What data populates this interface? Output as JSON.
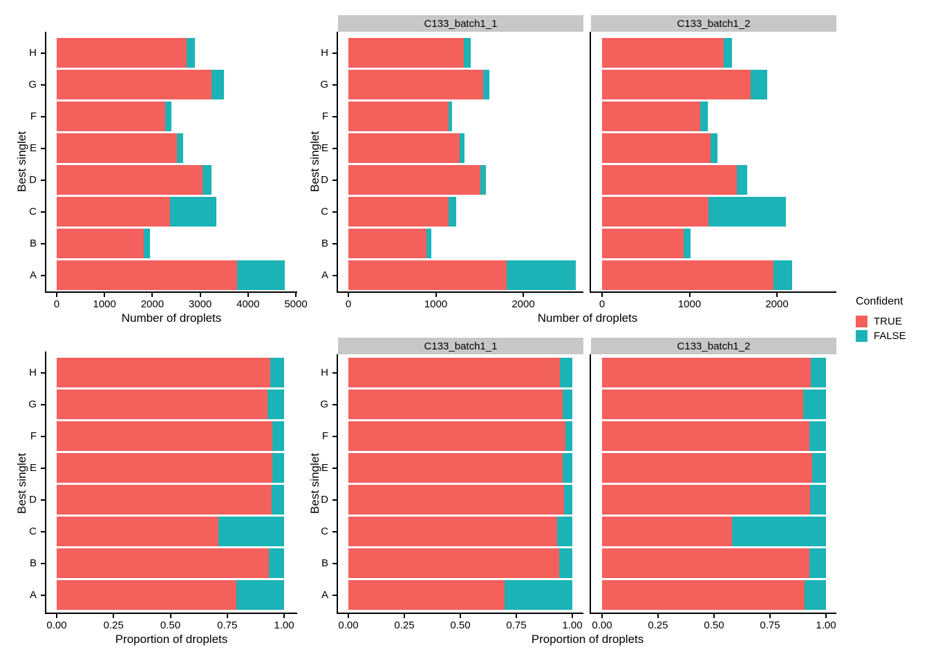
{
  "figure": {
    "background": "#ffffff"
  },
  "colors": {
    "true_fill": "#f4605c",
    "false_fill": "#1bb3b6",
    "strip_bg": "#c7c7c7",
    "axis": "#000000"
  },
  "legend": {
    "title": "Confident",
    "items": [
      {
        "label": "TRUE",
        "color": "#f4605c"
      },
      {
        "label": "FALSE",
        "color": "#1bb3b6"
      }
    ]
  },
  "chart_data": [
    {
      "id": "droplet_counts_overall",
      "type": "bar",
      "orientation": "horizontal",
      "stacked": true,
      "grid": false,
      "xlabel": "Number of droplets",
      "ylabel": "Best singlet",
      "categories": [
        "H",
        "G",
        "F",
        "E",
        "D",
        "C",
        "B",
        "A"
      ],
      "series": [
        {
          "name": "TRUE",
          "values": [
            2710,
            3240,
            2270,
            2510,
            3050,
            2370,
            1825,
            3770
          ]
        },
        {
          "name": "FALSE",
          "values": [
            180,
            260,
            125,
            135,
            180,
            965,
            130,
            1000
          ]
        }
      ],
      "xlim": [
        0,
        5000
      ],
      "xticks": [
        0,
        1000,
        2000,
        3000,
        4000,
        5000
      ],
      "xtick_labels": [
        "0",
        "1000",
        "2000",
        "3000",
        "4000",
        "5000"
      ]
    },
    {
      "id": "droplet_counts_by_sample",
      "type": "bar",
      "orientation": "horizontal",
      "stacked": true,
      "grid": false,
      "xlabel": "Number of droplets",
      "ylabel": "Best singlet",
      "categories": [
        "H",
        "G",
        "F",
        "E",
        "D",
        "C",
        "B",
        "A"
      ],
      "facets": [
        {
          "label": "C133_batch1_1",
          "series": [
            {
              "name": "TRUE",
              "values": [
                1320,
                1540,
                1150,
                1270,
                1510,
                1150,
                890,
                1810
              ]
            },
            {
              "name": "FALSE",
              "values": [
                80,
                70,
                35,
                55,
                60,
                85,
                55,
                790
              ]
            }
          ]
        },
        {
          "label": "C133_batch1_2",
          "series": [
            {
              "name": "TRUE",
              "values": [
                1390,
                1700,
                1120,
                1240,
                1540,
                1220,
                935,
                1960
              ]
            },
            {
              "name": "FALSE",
              "values": [
                100,
                190,
                90,
                80,
                120,
                880,
                75,
                210
              ]
            }
          ]
        }
      ],
      "xlim": [
        0,
        2700
      ],
      "xticks": [
        0,
        1000,
        2000
      ],
      "xtick_labels": [
        "0",
        "1000",
        "2000"
      ]
    },
    {
      "id": "droplet_proportions_overall",
      "type": "bar",
      "orientation": "horizontal",
      "stacked": true,
      "grid": false,
      "xlabel": "Proportion of droplets",
      "ylabel": "Best singlet",
      "categories": [
        "H",
        "G",
        "F",
        "E",
        "D",
        "C",
        "B",
        "A"
      ],
      "series": [
        {
          "name": "TRUE",
          "values": [
            0.938,
            0.926,
            0.948,
            0.949,
            0.944,
            0.711,
            0.934,
            0.79
          ]
        },
        {
          "name": "FALSE",
          "values": [
            0.062,
            0.074,
            0.052,
            0.051,
            0.056,
            0.289,
            0.066,
            0.21
          ]
        }
      ],
      "xlim": [
        0,
        1
      ],
      "xticks": [
        0,
        0.25,
        0.5,
        0.75,
        1
      ],
      "xtick_labels": [
        "0.00",
        "0.25",
        "0.50",
        "0.75",
        "1.00"
      ]
    },
    {
      "id": "droplet_proportions_by_sample",
      "type": "bar",
      "orientation": "horizontal",
      "stacked": true,
      "grid": false,
      "xlabel": "Proportion of droplets",
      "ylabel": "Best singlet",
      "categories": [
        "H",
        "G",
        "F",
        "E",
        "D",
        "C",
        "B",
        "A"
      ],
      "facets": [
        {
          "label": "C133_batch1_1",
          "series": [
            {
              "name": "TRUE",
              "values": [
                0.943,
                0.957,
                0.97,
                0.958,
                0.962,
                0.931,
                0.942,
                0.696
              ]
            },
            {
              "name": "FALSE",
              "values": [
                0.057,
                0.043,
                0.03,
                0.042,
                0.038,
                0.069,
                0.058,
                0.304
              ]
            }
          ]
        },
        {
          "label": "C133_batch1_2",
          "series": [
            {
              "name": "TRUE",
              "values": [
                0.933,
                0.899,
                0.926,
                0.939,
                0.928,
                0.581,
                0.926,
                0.903
              ]
            },
            {
              "name": "FALSE",
              "values": [
                0.067,
                0.101,
                0.074,
                0.061,
                0.072,
                0.419,
                0.074,
                0.097
              ]
            }
          ]
        }
      ],
      "xlim": [
        0,
        1
      ],
      "xticks": [
        0,
        0.25,
        0.5,
        0.75,
        1
      ],
      "xtick_labels": [
        "0.00",
        "0.25",
        "0.50",
        "0.75",
        "1.00"
      ]
    }
  ]
}
